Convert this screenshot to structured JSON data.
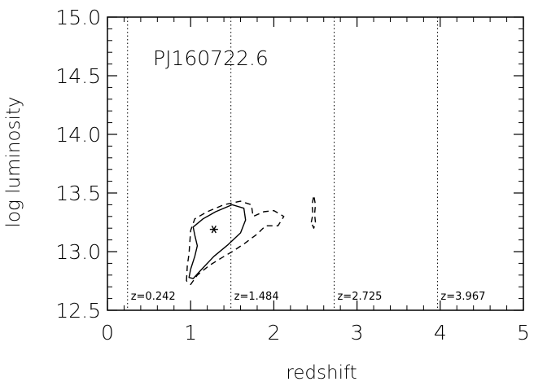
{
  "chart_data": {
    "type": "contour",
    "object_label": "PJ160722.6",
    "xlabel": "redshift",
    "ylabel": "log luminosity",
    "xlim": [
      0,
      5
    ],
    "ylim": [
      12.5,
      15.0
    ],
    "x_ticks": [
      0,
      1,
      2,
      3,
      4,
      5
    ],
    "x_tick_labels": [
      "0",
      "1",
      "2",
      "3",
      "4",
      "5"
    ],
    "y_ticks": [
      12.5,
      13.0,
      13.5,
      14.0,
      14.5,
      15.0
    ],
    "y_tick_labels": [
      "12.5",
      "13.0",
      "13.5",
      "14.0",
      "14.5",
      "15.0"
    ],
    "vertical_lines": [
      {
        "x": 0.242,
        "label": "z=0.242"
      },
      {
        "x": 1.484,
        "label": "z=1.484"
      },
      {
        "x": 2.725,
        "label": "z=2.725"
      },
      {
        "x": 3.967,
        "label": "z=3.967"
      }
    ],
    "best_fit": {
      "x": 1.28,
      "y": 13.19
    },
    "contours": [
      {
        "style": "solid",
        "points": [
          [
            1.0,
            12.85
          ],
          [
            1.05,
            12.96
          ],
          [
            1.08,
            13.05
          ],
          [
            1.05,
            13.14
          ],
          [
            1.03,
            13.21
          ],
          [
            1.15,
            13.28
          ],
          [
            1.3,
            13.34
          ],
          [
            1.5,
            13.4
          ],
          [
            1.64,
            13.37
          ],
          [
            1.66,
            13.27
          ],
          [
            1.6,
            13.16
          ],
          [
            1.45,
            13.06
          ],
          [
            1.28,
            12.96
          ],
          [
            1.12,
            12.84
          ],
          [
            1.03,
            12.77
          ],
          [
            0.98,
            12.78
          ],
          [
            1.0,
            12.85
          ]
        ]
      },
      {
        "style": "dashed",
        "points": [
          [
            0.95,
            12.75
          ],
          [
            0.96,
            12.88
          ],
          [
            0.98,
            12.98
          ],
          [
            0.99,
            13.08
          ],
          [
            1.0,
            13.18
          ],
          [
            1.05,
            13.28
          ],
          [
            1.2,
            13.34
          ],
          [
            1.4,
            13.4
          ],
          [
            1.6,
            13.43
          ],
          [
            1.73,
            13.4
          ],
          [
            1.75,
            13.3
          ],
          [
            1.88,
            13.34
          ],
          [
            2.0,
            13.35
          ],
          [
            2.12,
            13.3
          ],
          [
            2.05,
            13.22
          ],
          [
            1.9,
            13.22
          ],
          [
            1.8,
            13.15
          ],
          [
            1.65,
            13.07
          ],
          [
            1.5,
            13.0
          ],
          [
            1.38,
            12.95
          ],
          [
            1.22,
            12.88
          ],
          [
            1.08,
            12.8
          ],
          [
            1.0,
            12.72
          ],
          [
            0.95,
            12.75
          ]
        ]
      },
      {
        "style": "dashed",
        "points": [
          [
            2.45,
            13.25
          ],
          [
            2.47,
            13.32
          ],
          [
            2.46,
            13.4
          ],
          [
            2.48,
            13.48
          ],
          [
            2.5,
            13.4
          ],
          [
            2.49,
            13.32
          ],
          [
            2.5,
            13.25
          ],
          [
            2.48,
            13.2
          ],
          [
            2.45,
            13.25
          ]
        ]
      }
    ]
  }
}
